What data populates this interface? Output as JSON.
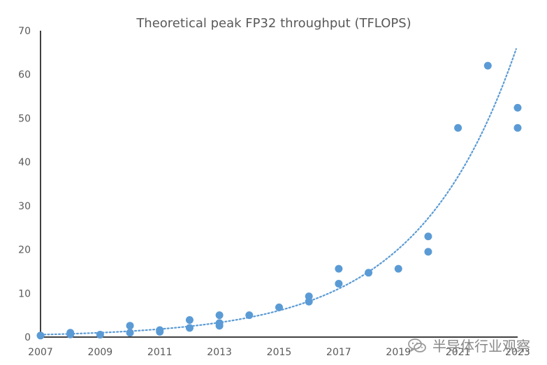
{
  "chart_data": {
    "type": "scatter",
    "title": "Theoretical peak FP32 throughput (TFLOPS)",
    "xlabel": "",
    "ylabel": "",
    "xlim": [
      2007,
      2023
    ],
    "ylim": [
      0,
      70
    ],
    "x_ticks": [
      2007,
      2009,
      2011,
      2013,
      2015,
      2017,
      2019,
      2021,
      2023
    ],
    "y_ticks": [
      0,
      10,
      20,
      30,
      40,
      50,
      60,
      70
    ],
    "grid": false,
    "legend": "none",
    "series": [
      {
        "name": "Theoretical peak FP32 throughput",
        "points": [
          {
            "x": 2007,
            "y": 0.35
          },
          {
            "x": 2008,
            "y": 0.6
          },
          {
            "x": 2008,
            "y": 1.0
          },
          {
            "x": 2009,
            "y": 0.55
          },
          {
            "x": 2010,
            "y": 1.0
          },
          {
            "x": 2010,
            "y": 2.6
          },
          {
            "x": 2011,
            "y": 1.2
          },
          {
            "x": 2011,
            "y": 1.6
          },
          {
            "x": 2012,
            "y": 2.1
          },
          {
            "x": 2012,
            "y": 3.9
          },
          {
            "x": 2013,
            "y": 2.6
          },
          {
            "x": 2013,
            "y": 3.2
          },
          {
            "x": 2013,
            "y": 5.0
          },
          {
            "x": 2014,
            "y": 5.0
          },
          {
            "x": 2015,
            "y": 6.8
          },
          {
            "x": 2016,
            "y": 8.1
          },
          {
            "x": 2016,
            "y": 9.3
          },
          {
            "x": 2017,
            "y": 12.2
          },
          {
            "x": 2017,
            "y": 15.6
          },
          {
            "x": 2018,
            "y": 14.7
          },
          {
            "x": 2019,
            "y": 15.6
          },
          {
            "x": 2020,
            "y": 19.5
          },
          {
            "x": 2020,
            "y": 23.0
          },
          {
            "x": 2021,
            "y": 47.8
          },
          {
            "x": 2022,
            "y": 62.0
          },
          {
            "x": 2023,
            "y": 47.8
          },
          {
            "x": 2023,
            "y": 52.4
          }
        ]
      }
    ],
    "trendline": {
      "type": "exponential",
      "a": 0.55,
      "b": 0.3,
      "x0": 2007,
      "x_range": [
        2007,
        2022.95
      ]
    },
    "colors": {
      "series": "#5b9bd5",
      "axis": "#000000",
      "text": "#595959"
    }
  },
  "watermark": {
    "text": "半导体行业观察",
    "icon": "wechat-icon"
  }
}
